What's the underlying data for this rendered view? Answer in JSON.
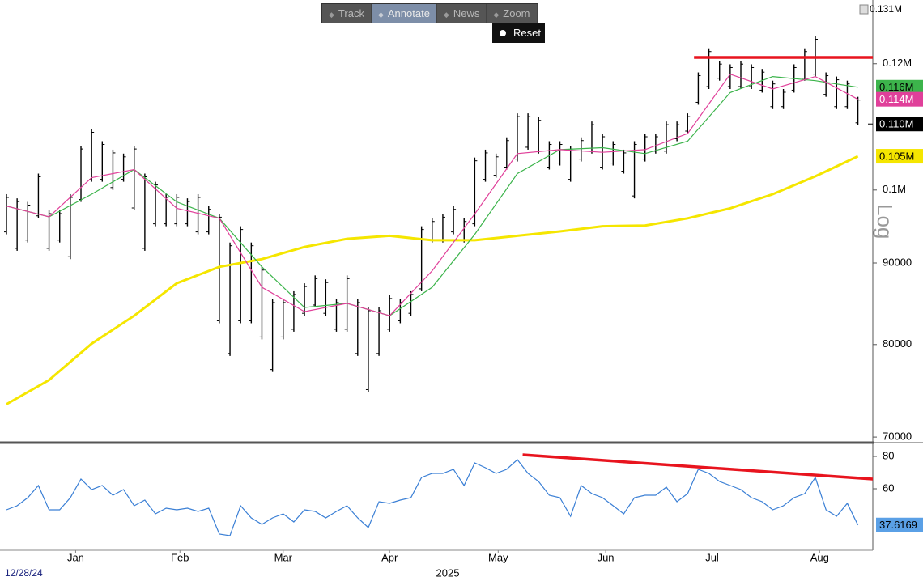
{
  "toolbar": {
    "buttons": [
      "Track",
      "Annotate",
      "News",
      "Zoom"
    ],
    "active": 1,
    "reset": "Reset"
  },
  "top_label": "0.131M",
  "scale_label": "Log",
  "start_label": "12/28/24",
  "year_label": "2025",
  "chart_data": [
    {
      "type": "ohlc",
      "log": true,
      "xlim": [
        0,
        81.4
      ],
      "ylim": [
        69600,
        130800
      ],
      "yticks": [
        {
          "value": 70000,
          "label": "70000"
        },
        80000,
        90000,
        {
          "value": 100000,
          "label": "0.1M"
        },
        {
          "value": 120000,
          "label": "0.12M"
        }
      ],
      "xticks": [
        {
          "value": 6.5,
          "label": "Jan"
        },
        {
          "value": 16.3,
          "label": "Feb"
        },
        {
          "value": 26,
          "label": "Mar"
        },
        {
          "value": 36,
          "label": "Apr"
        },
        {
          "value": 46.2,
          "label": "May"
        },
        {
          "value": 56.3,
          "label": "Jun"
        },
        {
          "value": 66.3,
          "label": "Jul"
        },
        {
          "value": 76.4,
          "label": "Aug"
        }
      ],
      "bars": {
        "color": "#000000",
        "last_value": 110000,
        "last_value_label": "0.110M",
        "label_color": "#000000",
        "label_text_color": "#ffffff",
        "highs": [
          99400,
          98800,
          98300,
          102400,
          97100,
          97100,
          99400,
          106600,
          109200,
          107300,
          106000,
          105400,
          106600,
          102400,
          101200,
          99400,
          99400,
          98800,
          99400,
          97700,
          96600,
          92700,
          94900,
          92700,
          89500,
          85400,
          85400,
          86400,
          87400,
          88400,
          87900,
          85400,
          88400,
          85400,
          84400,
          84400,
          85900,
          85400,
          86400,
          94900,
          96000,
          96600,
          97700,
          96000,
          104800,
          106000,
          105400,
          107900,
          111700,
          111700,
          111100,
          107300,
          107300,
          106600,
          107900,
          110400,
          108500,
          107300,
          106000,
          107300,
          108500,
          108500,
          110400,
          110400,
          111700,
          118500,
          122700,
          120500,
          119900,
          120500,
          119900,
          119100,
          117100,
          115700,
          119900,
          122700,
          124900,
          118500,
          117800,
          117100,
          114400
        ],
        "lows": [
          93800,
          91600,
          92700,
          96000,
          91600,
          92700,
          90500,
          98300,
          101200,
          101200,
          100000,
          101200,
          97100,
          91600,
          94900,
          94900,
          94900,
          94900,
          93800,
          93800,
          82500,
          78700,
          82500,
          82500,
          80600,
          76900,
          80600,
          81500,
          83400,
          84400,
          83400,
          81500,
          81500,
          78700,
          74700,
          78700,
          81500,
          82500,
          83400,
          86400,
          92700,
          92700,
          93800,
          92700,
          94900,
          101200,
          101800,
          103000,
          104200,
          106000,
          105400,
          103000,
          103600,
          101200,
          104200,
          105400,
          103000,
          103600,
          102400,
          98800,
          104200,
          105400,
          105400,
          107300,
          108500,
          113100,
          115700,
          117100,
          115700,
          115700,
          115700,
          115100,
          112400,
          112400,
          115100,
          117100,
          117800,
          114400,
          112400,
          112400,
          109800
        ]
      },
      "series": [
        {
          "color": "#f5e600",
          "width": 3,
          "label_text_color": "#000000",
          "x": [
            0,
            4,
            8,
            12,
            16,
            20,
            24,
            28,
            32,
            36,
            40,
            44,
            48,
            52,
            56,
            60,
            64,
            68,
            72,
            76,
            80
          ],
          "values": [
            73400,
            76000,
            80100,
            83400,
            87400,
            89500,
            90500,
            92100,
            93200,
            93600,
            93000,
            93000,
            93600,
            94200,
            94900,
            95000,
            96000,
            97400,
            99400,
            102000,
            105000
          ],
          "last_value_label": "0.105M"
        },
        {
          "color": "#3cb44b",
          "width": 1.2,
          "label_text_color": "#000000",
          "x": [
            0,
            4,
            8,
            12,
            16,
            20,
            24,
            28,
            32,
            36,
            40,
            44,
            48,
            52,
            56,
            60,
            64,
            68,
            72,
            76,
            80
          ],
          "values": [
            97700,
            96200,
            99400,
            103000,
            98300,
            96000,
            89500,
            84400,
            84900,
            83400,
            86900,
            93800,
            102400,
            106000,
            106300,
            105400,
            107300,
            115100,
            117800,
            117100,
            116000
          ],
          "last_value_label": "0.116M"
        },
        {
          "color": "#e0409a",
          "width": 1.2,
          "label_text_color": "#ffffff",
          "x": [
            0,
            4,
            8,
            12,
            16,
            20,
            24,
            28,
            32,
            36,
            40,
            44,
            48,
            52,
            56,
            60,
            64,
            68,
            72,
            76,
            80
          ],
          "values": [
            97700,
            96200,
            101800,
            103000,
            97400,
            96000,
            86900,
            83900,
            84900,
            83400,
            89000,
            96600,
            105400,
            106000,
            105600,
            106000,
            108500,
            118200,
            115700,
            117800,
            114000
          ],
          "last_value_label": "0.114M"
        }
      ],
      "lines": [
        {
          "color": "#e8141e",
          "x": [
            64.6,
            81.4
          ],
          "values": [
            121100,
            121100
          ]
        }
      ]
    },
    {
      "type": "line",
      "xlim": [
        0,
        81.4
      ],
      "ylim": [
        23,
        87
      ],
      "yticks": [
        60,
        80
      ],
      "series": [
        {
          "color": "#3a7fd5",
          "width": 1.2,
          "label_color": "#5aa0e6",
          "label_text_color": "#000000",
          "last_value_label": "37.6169",
          "values": [
            47,
            49.5,
            54.5,
            62,
            47,
            47,
            54.5,
            66,
            59.5,
            62,
            56,
            59.5,
            49.5,
            53,
            44.5,
            48,
            47,
            48,
            46,
            48,
            32,
            31,
            49.5,
            42,
            38,
            42,
            44.5,
            39.5,
            47,
            46,
            42,
            46,
            49.5,
            42,
            36,
            52,
            51,
            53,
            54.5,
            67,
            69.5,
            69.5,
            72,
            62,
            76,
            73,
            69.5,
            72,
            78,
            69.5,
            64.5,
            56,
            54.5,
            43,
            62,
            57,
            54.5,
            49.5,
            44.5,
            54.5,
            56,
            56,
            61,
            52,
            57,
            72,
            69.5,
            64.5,
            62,
            59.5,
            54.5,
            52,
            47,
            49.5,
            54.5,
            57,
            67,
            47,
            43,
            51,
            37.6169
          ]
        }
      ],
      "lines": [
        {
          "color": "#e8141e",
          "x": [
            48.5,
            81.4
          ],
          "values": [
            81,
            66
          ]
        }
      ]
    }
  ]
}
